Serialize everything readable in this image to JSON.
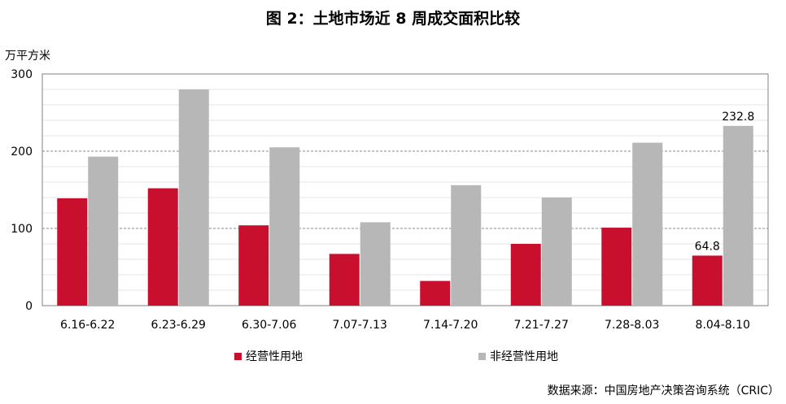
{
  "title": "图 2：土地市场近 8 周成交面积比较",
  "source": "数据来源：中国房地产决策咨询系统（CRIC）",
  "chart_data": {
    "type": "bar",
    "ylabel": "万平方米",
    "ylim": [
      0,
      300
    ],
    "yticks": [
      "0",
      "100",
      "200",
      "300"
    ],
    "grid": true,
    "legend_position": "bottom",
    "categories": [
      "6.16-6.22",
      "6.23-6.29",
      "6.30-7.06",
      "7.07-7.13",
      "7.14-7.20",
      "7.21-7.27",
      "7.28-8.03",
      "8.04-8.10"
    ],
    "series": [
      {
        "name": "经营性用地",
        "color": "#c8102e",
        "values": [
          139,
          152,
          104,
          67,
          32,
          80,
          101,
          64.8
        ]
      },
      {
        "name": "非经营性用地",
        "color": "#b7b7b7",
        "values": [
          193,
          280,
          205,
          108,
          156,
          140,
          211,
          232.8
        ]
      }
    ],
    "data_labels": [
      {
        "series": 0,
        "index": 7,
        "text": "64.8"
      },
      {
        "series": 1,
        "index": 7,
        "text": "232.8"
      }
    ]
  }
}
